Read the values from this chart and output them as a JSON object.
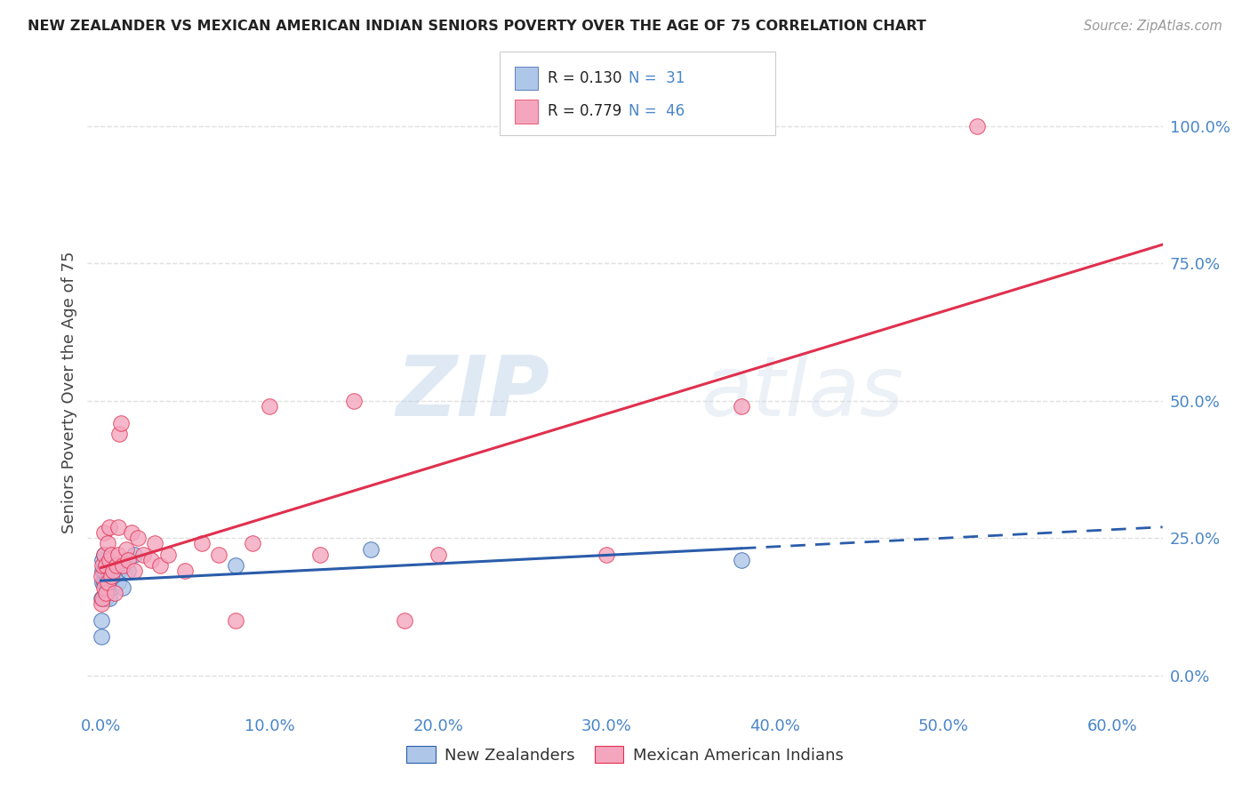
{
  "title": "NEW ZEALANDER VS MEXICAN AMERICAN INDIAN SENIORS POVERTY OVER THE AGE OF 75 CORRELATION CHART",
  "source": "Source: ZipAtlas.com",
  "ylabel": "Seniors Poverty Over the Age of 75",
  "xtick_vals": [
    0.0,
    0.1,
    0.2,
    0.3,
    0.4,
    0.5,
    0.6
  ],
  "xtick_labels": [
    "0.0%",
    "10.0%",
    "20.0%",
    "30.0%",
    "40.0%",
    "50.0%",
    "60.0%"
  ],
  "ytick_vals": [
    0.0,
    0.25,
    0.5,
    0.75,
    1.0
  ],
  "ytick_labels": [
    "0.0%",
    "25.0%",
    "50.0%",
    "75.0%",
    "100.0%"
  ],
  "xlim": [
    -0.008,
    0.63
  ],
  "ylim": [
    -0.07,
    1.1
  ],
  "blue_R": 0.13,
  "blue_N": 31,
  "pink_R": 0.779,
  "pink_N": 46,
  "blue_color": "#aec6e8",
  "pink_color": "#f4a6bf",
  "blue_line_color": "#2a5caa",
  "pink_line_color": "#e0304e",
  "legend_label_blue": "New Zealanders",
  "legend_label_pink": "Mexican American Indians",
  "watermark_zip": "ZIP",
  "watermark_atlas": "atlas",
  "blue_scatter_x": [
    0.0,
    0.0,
    0.0,
    0.001,
    0.001,
    0.001,
    0.002,
    0.002,
    0.002,
    0.002,
    0.003,
    0.003,
    0.003,
    0.004,
    0.004,
    0.005,
    0.005,
    0.005,
    0.006,
    0.006,
    0.007,
    0.008,
    0.009,
    0.01,
    0.011,
    0.013,
    0.016,
    0.02,
    0.08,
    0.16,
    0.38
  ],
  "blue_scatter_y": [
    0.07,
    0.1,
    0.14,
    0.17,
    0.19,
    0.21,
    0.14,
    0.17,
    0.19,
    0.22,
    0.14,
    0.17,
    0.2,
    0.16,
    0.19,
    0.14,
    0.17,
    0.2,
    0.16,
    0.19,
    0.18,
    0.2,
    0.19,
    0.17,
    0.19,
    0.16,
    0.19,
    0.22,
    0.2,
    0.23,
    0.21
  ],
  "pink_scatter_x": [
    0.0,
    0.0,
    0.001,
    0.001,
    0.002,
    0.002,
    0.002,
    0.003,
    0.003,
    0.004,
    0.004,
    0.005,
    0.005,
    0.006,
    0.006,
    0.007,
    0.008,
    0.009,
    0.01,
    0.01,
    0.011,
    0.012,
    0.013,
    0.015,
    0.016,
    0.018,
    0.02,
    0.022,
    0.025,
    0.03,
    0.032,
    0.035,
    0.04,
    0.05,
    0.06,
    0.07,
    0.08,
    0.09,
    0.1,
    0.13,
    0.15,
    0.18,
    0.2,
    0.3,
    0.38,
    0.52
  ],
  "pink_scatter_y": [
    0.13,
    0.18,
    0.14,
    0.2,
    0.16,
    0.22,
    0.26,
    0.15,
    0.2,
    0.17,
    0.24,
    0.21,
    0.27,
    0.18,
    0.22,
    0.19,
    0.15,
    0.2,
    0.22,
    0.27,
    0.44,
    0.46,
    0.2,
    0.23,
    0.21,
    0.26,
    0.19,
    0.25,
    0.22,
    0.21,
    0.24,
    0.2,
    0.22,
    0.19,
    0.24,
    0.22,
    0.1,
    0.24,
    0.49,
    0.22,
    0.5,
    0.1,
    0.22,
    0.22,
    0.49,
    1.0
  ],
  "background_color": "#ffffff",
  "grid_color": "#e0e0e0"
}
